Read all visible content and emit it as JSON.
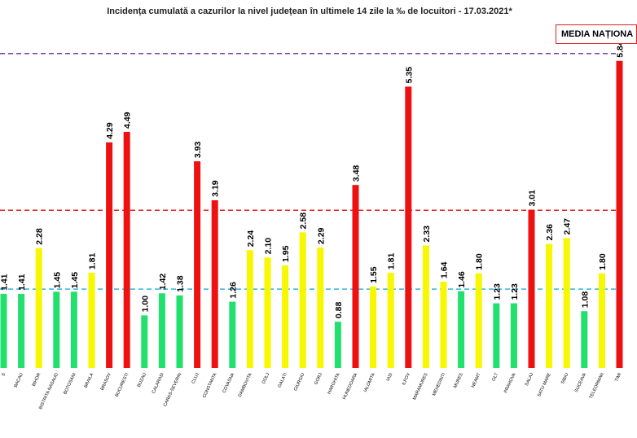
{
  "title": "Incidența cumulată a cazurilor la nivel județean în ultimele 14 zile   la ‰ de locuitori  - 17.03.2021*",
  "legend_label": "MEDIA NAȚIONA",
  "colors": {
    "green": "#22e06e",
    "yellow": "#f7f700",
    "red": "#ee1111",
    "line_purple": "#7b3fa0",
    "line_red": "#e02020",
    "line_blue": "#33b2e0"
  },
  "chart_data": {
    "type": "bar",
    "title": "Incidența cumulată a cazurilor la nivel județean în ultimele 14 zile   la ‰ de locuitori  - 17.03.2021*",
    "categories": [
      "S",
      "BACAU",
      "BIHOR",
      "BISTRITA NASAUD",
      "BOTOSANI",
      "BRAILA",
      "BRASOV",
      "BUCURESTI",
      "BUZAU",
      "CALARASI",
      "CARAS-SEVERIN",
      "CLUJ",
      "CONSTANTA",
      "COVASNA",
      "DAMBOVITA",
      "DOLJ",
      "GALATI",
      "GIURGIU",
      "GORJ",
      "HARGHITA",
      "HUNEDOARA",
      "IALOMITA",
      "IASI",
      "ILFOV",
      "MARAMURES",
      "MEHEDINTI",
      "MURES",
      "NEAMT",
      "OLT",
      "PRAHOVA",
      "SALAJ",
      "SATU MARE",
      "SIBIU",
      "SUCEAVA",
      "TELEORMAN",
      "TIMI"
    ],
    "values": [
      1.41,
      1.41,
      2.28,
      1.45,
      1.45,
      1.81,
      4.29,
      4.49,
      1.0,
      1.42,
      1.38,
      3.93,
      3.19,
      1.26,
      2.24,
      2.1,
      1.95,
      2.58,
      2.29,
      0.88,
      3.48,
      1.55,
      1.81,
      5.35,
      2.33,
      1.64,
      1.46,
      1.8,
      1.23,
      1.23,
      3.01,
      2.36,
      2.47,
      1.08,
      1.8,
      5.84
    ],
    "value_labels": [
      "1.41",
      "1.41",
      "2.28",
      "1.45",
      "1.45",
      "1.81",
      "4.29",
      "4.49",
      "1.00",
      "1.42",
      "1.38",
      "3.93",
      "3.19",
      "1.26",
      "2.24",
      "2.10",
      "1.95",
      "2.58",
      "2.29",
      "0.88",
      "3.48",
      "1.55",
      "1.81",
      "5.35",
      "2.33",
      "1.64",
      "1.46",
      "1.80",
      "1.23",
      "1.23",
      "3.01",
      "2.36",
      "2.47",
      "1.08",
      "1.80",
      "5.84"
    ],
    "bar_colors": [
      "green",
      "green",
      "yellow",
      "green",
      "green",
      "yellow",
      "red",
      "red",
      "green",
      "green",
      "green",
      "red",
      "red",
      "green",
      "yellow",
      "yellow",
      "yellow",
      "yellow",
      "yellow",
      "green",
      "red",
      "yellow",
      "yellow",
      "red",
      "yellow",
      "yellow",
      "green",
      "yellow",
      "green",
      "green",
      "red",
      "yellow",
      "yellow",
      "green",
      "yellow",
      "red"
    ],
    "reference_lines": [
      {
        "value": 5.98,
        "color": "line_purple"
      },
      {
        "value": 3.0,
        "color": "line_red"
      },
      {
        "value": 1.5,
        "color": "line_blue"
      }
    ],
    "ylim": [
      0,
      6.4
    ],
    "grid": false,
    "legend_position": "top-right"
  }
}
